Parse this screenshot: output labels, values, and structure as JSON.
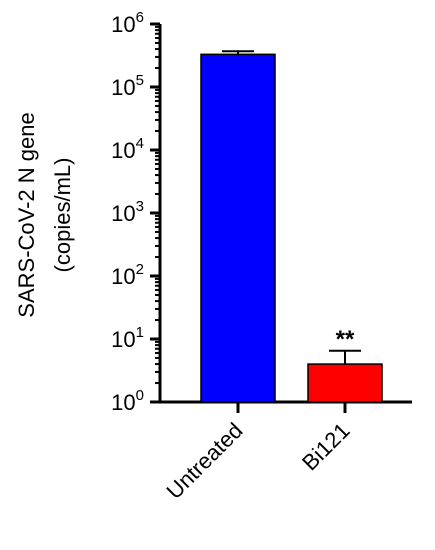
{
  "chart_data": {
    "type": "bar",
    "ylabel_lines": [
      "SARS-CoV-2 N gene",
      "(copies/mL)"
    ],
    "yscale": "log",
    "ylim": [
      1,
      1000000
    ],
    "yticks": [
      {
        "base": "10",
        "exp": "0",
        "value": 1
      },
      {
        "base": "10",
        "exp": "1",
        "value": 10
      },
      {
        "base": "10",
        "exp": "2",
        "value": 100
      },
      {
        "base": "10",
        "exp": "3",
        "value": 1000
      },
      {
        "base": "10",
        "exp": "4",
        "value": 10000
      },
      {
        "base": "10",
        "exp": "5",
        "value": 100000
      },
      {
        "base": "10",
        "exp": "6",
        "value": 1000000
      }
    ],
    "categories": [
      "Untreated",
      "Bi121"
    ],
    "values": [
      330000,
      4
    ],
    "error_upper": [
      370000,
      6.5
    ],
    "bar_colors": [
      "#0000ff",
      "#ff0000"
    ],
    "annotations": [
      {
        "category": "Bi121",
        "text": "**"
      }
    ],
    "grid": false
  }
}
